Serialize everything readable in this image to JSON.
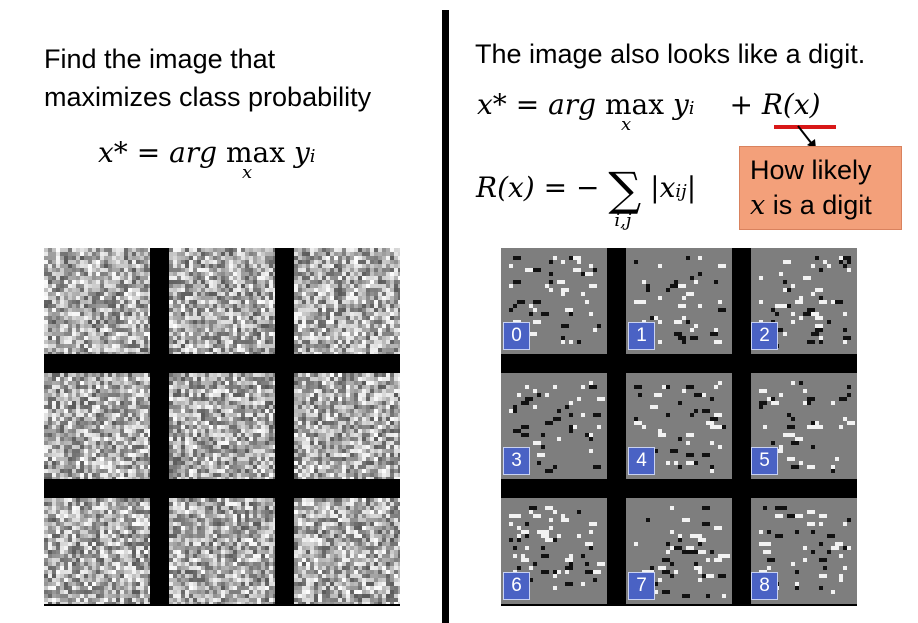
{
  "left": {
    "heading_line1": "Find the image that",
    "heading_line2": "maximizes class probability",
    "formula": {
      "lhs": "x*",
      "eq": "=",
      "arg": "arg",
      "max": "max",
      "max_sub": "x",
      "y": "y",
      "y_sub": "i"
    }
  },
  "right": {
    "heading": "The image also looks like a digit.",
    "formula1": {
      "lhs": "x*",
      "eq": "=",
      "arg": "arg",
      "max": "max",
      "max_sub": "x",
      "y": "y",
      "y_sub": "i",
      "plus": "+",
      "reg": "R(x)"
    },
    "formula2": {
      "lhs": "R(x)",
      "eq": "=",
      "minus": "−",
      "sum": "∑",
      "sum_sub": "i,j",
      "abs": "|x",
      "abs_sub": "ij",
      "abs_close": "|"
    },
    "callout_line1": "How likely",
    "callout_line2_var": "x",
    "callout_line2_rest": " is a digit"
  },
  "digits": [
    "0",
    "1",
    "2",
    "3",
    "4",
    "5",
    "6",
    "7",
    "8"
  ],
  "colors": {
    "badge": "#4a62c4",
    "callout": "#f3a07a",
    "underline": "#d81818",
    "tile_gray": "#7e7e7e"
  }
}
